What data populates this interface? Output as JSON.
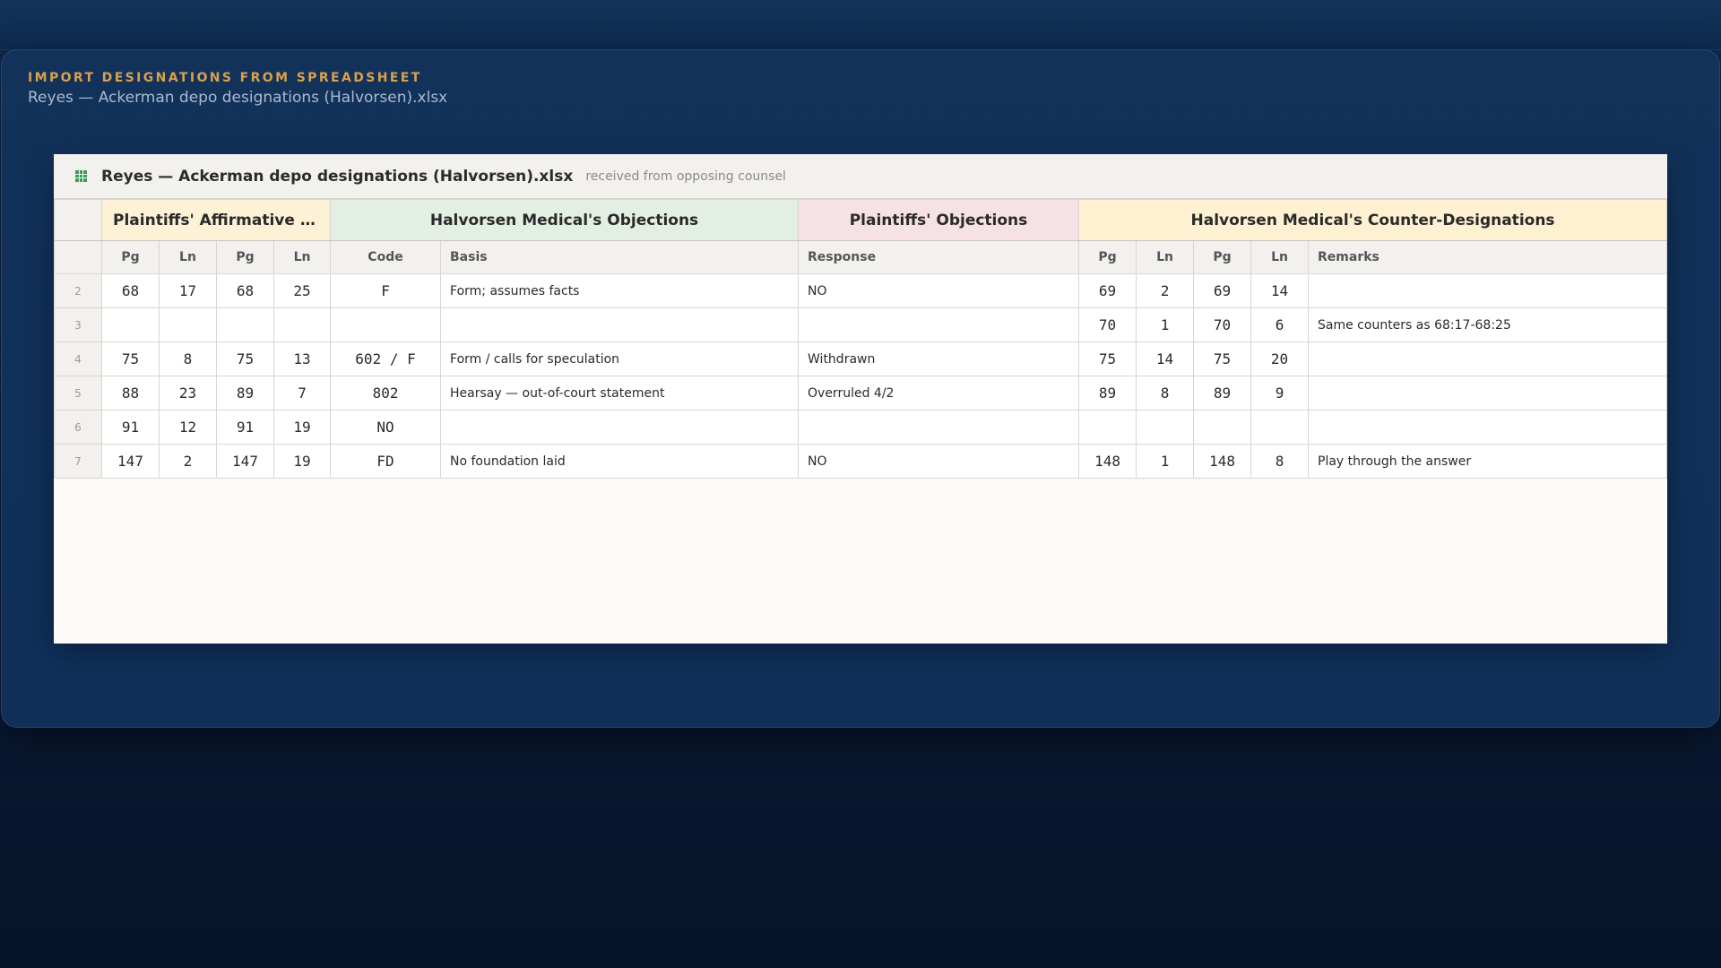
{
  "panel": {
    "kicker": "IMPORT DESIGNATIONS FROM SPREADSHEET",
    "subtitle": "Reyes — Ackerman depo designations (Halvorsen).xlsx"
  },
  "sheet": {
    "icon": "spreadsheet-icon",
    "title": "Reyes — Ackerman depo designations (Halvorsen).xlsx",
    "note": "received from opposing counsel"
  },
  "groups": {
    "affirmative": "Plaintiffs' Affirmative …",
    "defense_objections": "Halvorsen Medical's Objections",
    "plaintiff_objections": "Plaintiffs' Objections",
    "counter": "Halvorsen Medical's Counter-Designations"
  },
  "columns": [
    "Pg",
    "Ln",
    "Pg",
    "Ln",
    "Code",
    "Basis",
    "Response",
    "Pg",
    "Ln",
    "Pg",
    "Ln",
    "Remarks"
  ],
  "rows": [
    {
      "n": "2",
      "c": [
        "68",
        "17",
        "68",
        "25",
        "F",
        "Form; assumes facts",
        "NO",
        "69",
        "2",
        "69",
        "14",
        ""
      ]
    },
    {
      "n": "3",
      "c": [
        "",
        "",
        "",
        "",
        "",
        "",
        "",
        "70",
        "1",
        "70",
        "6",
        "Same counters as 68:17-68:25"
      ]
    },
    {
      "n": "4",
      "c": [
        "75",
        "8",
        "75",
        "13",
        "602 / F",
        "Form / calls for speculation",
        "Withdrawn",
        "75",
        "14",
        "75",
        "20",
        ""
      ]
    },
    {
      "n": "5",
      "c": [
        "88",
        "23",
        "89",
        "7",
        "802",
        "Hearsay — out-of-court statement",
        "Overruled 4/2",
        "89",
        "8",
        "89",
        "9",
        ""
      ]
    },
    {
      "n": "6",
      "c": [
        "91",
        "12",
        "91",
        "19",
        "NO",
        "",
        "",
        "",
        "",
        "",
        "",
        ""
      ]
    },
    {
      "n": "7",
      "c": [
        "147",
        "2",
        "147",
        "19",
        "FD",
        "No foundation laid",
        "NO",
        "148",
        "1",
        "148",
        "8",
        "Play through the answer"
      ]
    }
  ]
}
